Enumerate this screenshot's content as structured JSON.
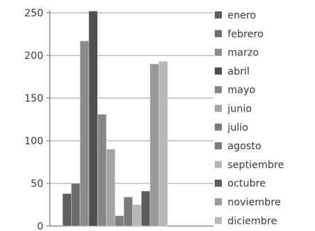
{
  "chart_data": {
    "type": "bar",
    "title": "",
    "xlabel": "",
    "ylabel": "",
    "ylim": [
      0,
      250
    ],
    "yticks": [
      0,
      50,
      100,
      150,
      200,
      250
    ],
    "grid": true,
    "legend_position": "right",
    "series": [
      {
        "name": "enero",
        "value": 38,
        "color": "#5e5e5e"
      },
      {
        "name": "febrero",
        "value": 50,
        "color": "#6c6c6c"
      },
      {
        "name": "marzo",
        "value": 217,
        "color": "#8c8c8c"
      },
      {
        "name": "abril",
        "value": 252,
        "color": "#4f4f4f"
      },
      {
        "name": "mayo",
        "value": 131,
        "color": "#868686"
      },
      {
        "name": "junio",
        "value": 90,
        "color": "#a4a4a4"
      },
      {
        "name": "julio",
        "value": 12,
        "color": "#7c7c7c"
      },
      {
        "name": "agosto",
        "value": 34,
        "color": "#7a7a7a"
      },
      {
        "name": "septiembre",
        "value": 25,
        "color": "#b6b6b6"
      },
      {
        "name": "octubre",
        "value": 41,
        "color": "#5e5e5e"
      },
      {
        "name": "noviembre",
        "value": 190,
        "color": "#9a9a9a"
      },
      {
        "name": "diciembre",
        "value": 193,
        "color": "#b8b8b8"
      }
    ]
  }
}
